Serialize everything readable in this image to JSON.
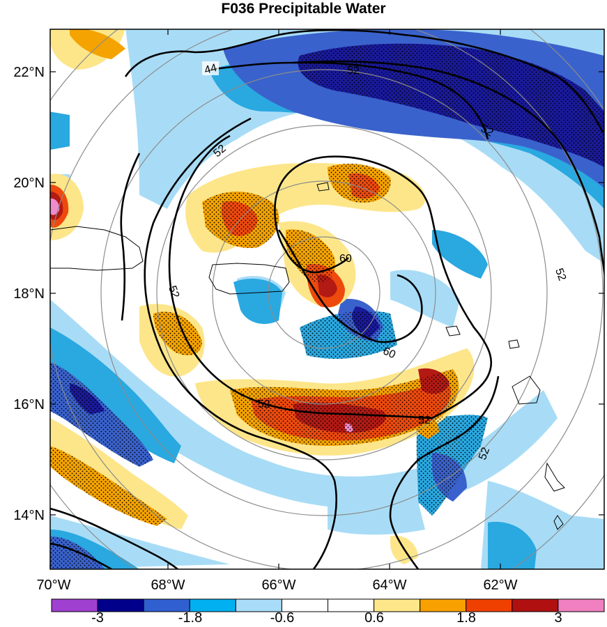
{
  "title": "F036 Precipitable Water",
  "map": {
    "lat_ticks": [
      "22°N",
      "20°N",
      "18°N",
      "16°N",
      "14°N"
    ],
    "lon_ticks": [
      "70°W",
      "68°W",
      "66°W",
      "64°W",
      "62°W"
    ],
    "contour_labels": [
      "44",
      "52",
      "52",
      "52",
      "52",
      "60",
      "60",
      "52",
      "52",
      "52",
      "52"
    ]
  },
  "colorbar": {
    "labels": [
      "-3",
      "-1.8",
      "-0.6",
      "0.6",
      "1.8",
      "3"
    ],
    "colors": [
      "#a040d0",
      "#00008b",
      "#3060d0",
      "#00b0f0",
      "#a8dcf8",
      "#ffffff",
      "#ffffff",
      "#fde78a",
      "#f8a000",
      "#f04000",
      "#b01010",
      "#f080c0"
    ]
  },
  "colors": {
    "dark_blue": "#1a1a9c",
    "blue": "#3a62cc",
    "mid_blue": "#2aa8e0",
    "light_blue": "#a8dcf6",
    "yellow": "#fde68a",
    "orange": "#f5a300",
    "red_orange": "#ee4a0e",
    "dark_red": "#b41a14",
    "pink": "#f08ccc"
  }
}
